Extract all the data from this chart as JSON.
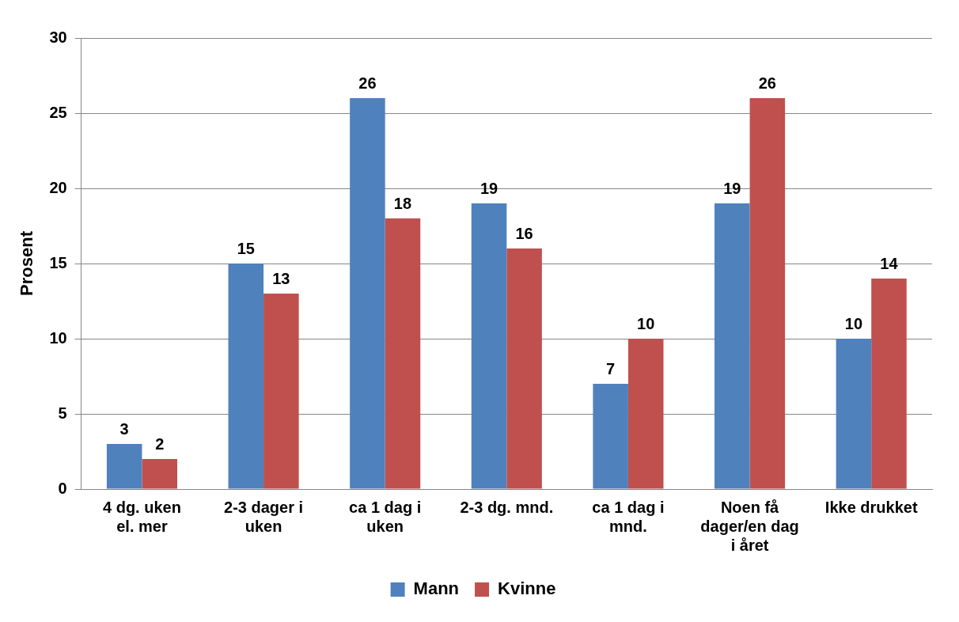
{
  "chart_data": {
    "type": "bar",
    "ylabel": "Prosent",
    "categories": [
      "4 dg. uken el. mer",
      "2-3 dager i uken",
      "ca 1 dag i uken",
      "2-3 dg. mnd.",
      "ca 1 dag i mnd.",
      "Noen få dager/en dag i året",
      "Ikke drukket"
    ],
    "series": [
      {
        "name": "Mann",
        "color": "#4f81bd",
        "values": [
          3,
          15,
          26,
          19,
          7,
          19,
          10
        ]
      },
      {
        "name": "Kvinne",
        "color": "#c0504d",
        "values": [
          2,
          13,
          18,
          16,
          10,
          26,
          14
        ]
      }
    ],
    "ylim": [
      0,
      30
    ],
    "yticks": [
      0,
      5,
      10,
      15,
      20,
      25,
      30
    ],
    "grid": "y",
    "legend": "bottom",
    "data_labels": true
  }
}
